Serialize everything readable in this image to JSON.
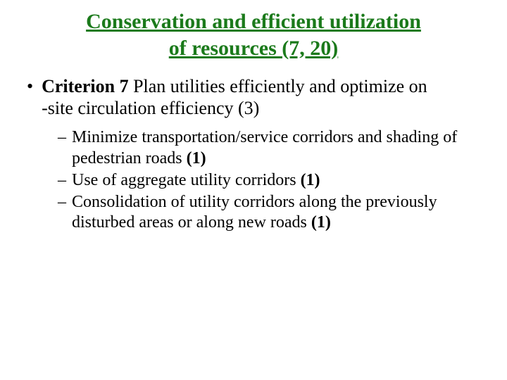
{
  "title_line1": "Conservation and efficient utilization",
  "title_line2": "of resources (7, 20)",
  "criterion": {
    "label": "Criterion 7",
    "text_part1": " Plan utilities efficiently and optimize on",
    "text_part2": "-site circulation efficiency (3)"
  },
  "subitems": [
    {
      "text": "Minimize transportation/service corridors and shading of pedestrian roads ",
      "weight": "(1)"
    },
    {
      "text": "Use of aggregate utility corridors ",
      "weight": "(1)"
    },
    {
      "text": "Consolidation of utility corridors along the previously disturbed areas or along new roads ",
      "weight": "(1)"
    }
  ],
  "styling": {
    "title_color": "#1b7a1b",
    "title_fontsize": 30,
    "body_fontsize": 26,
    "sub_fontsize": 24,
    "background_color": "#ffffff",
    "text_color": "#000000",
    "font_family": "Times New Roman"
  }
}
